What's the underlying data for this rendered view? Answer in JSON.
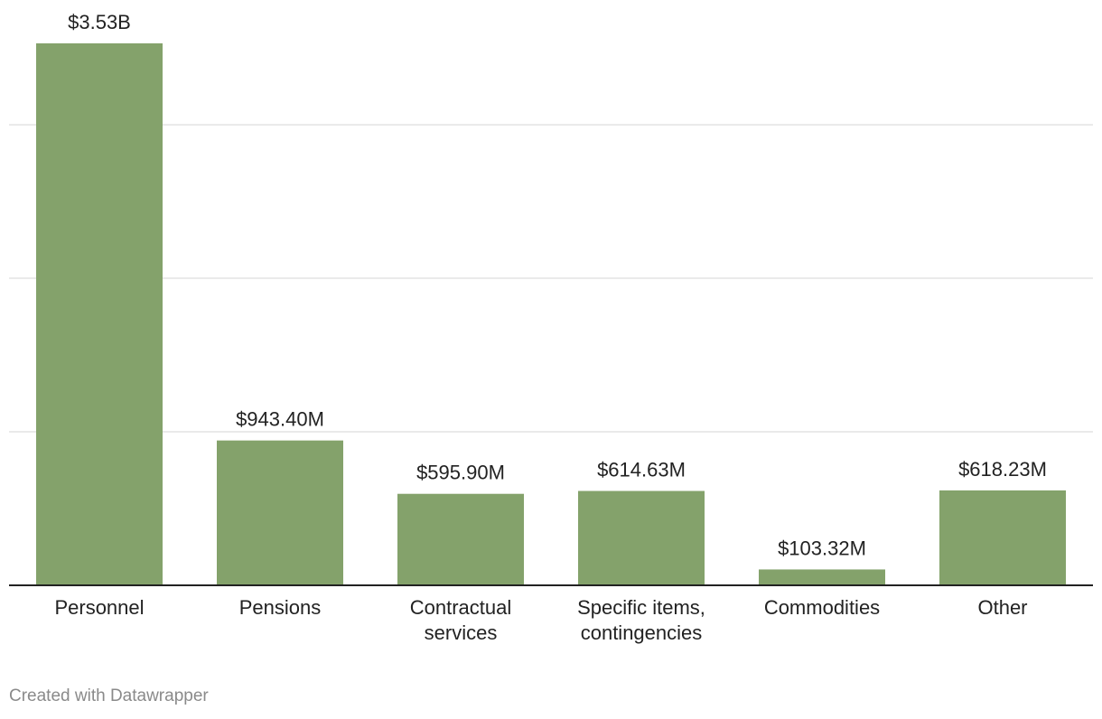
{
  "chart_data": {
    "type": "bar",
    "title": "",
    "xlabel": "",
    "ylabel": "",
    "categories": [
      [
        "Personnel"
      ],
      [
        "Pensions"
      ],
      [
        "Contractual",
        "services"
      ],
      [
        "Specific items,",
        "contingencies"
      ],
      [
        "Commodities"
      ],
      [
        "Other"
      ]
    ],
    "values": [
      3530,
      943.4,
      595.9,
      614.63,
      103.32,
      618.23
    ],
    "value_unit": "millions of dollars",
    "value_labels": [
      "$3.53B",
      "$943.40M",
      "$595.90M",
      "$614.63M",
      "$103.32M",
      "$618.23M"
    ],
    "ylim": [
      0,
      3530
    ],
    "gridlines": [
      1000,
      2000,
      3000
    ],
    "grid": true,
    "bar_color": "#84a26b"
  },
  "footer": {
    "credit": "Created with Datawrapper"
  },
  "colors": {
    "bar": "#84a26b",
    "grid": "#e3e3e3",
    "axis": "#222222",
    "text": "#222222",
    "credit": "#8a8a8a"
  }
}
